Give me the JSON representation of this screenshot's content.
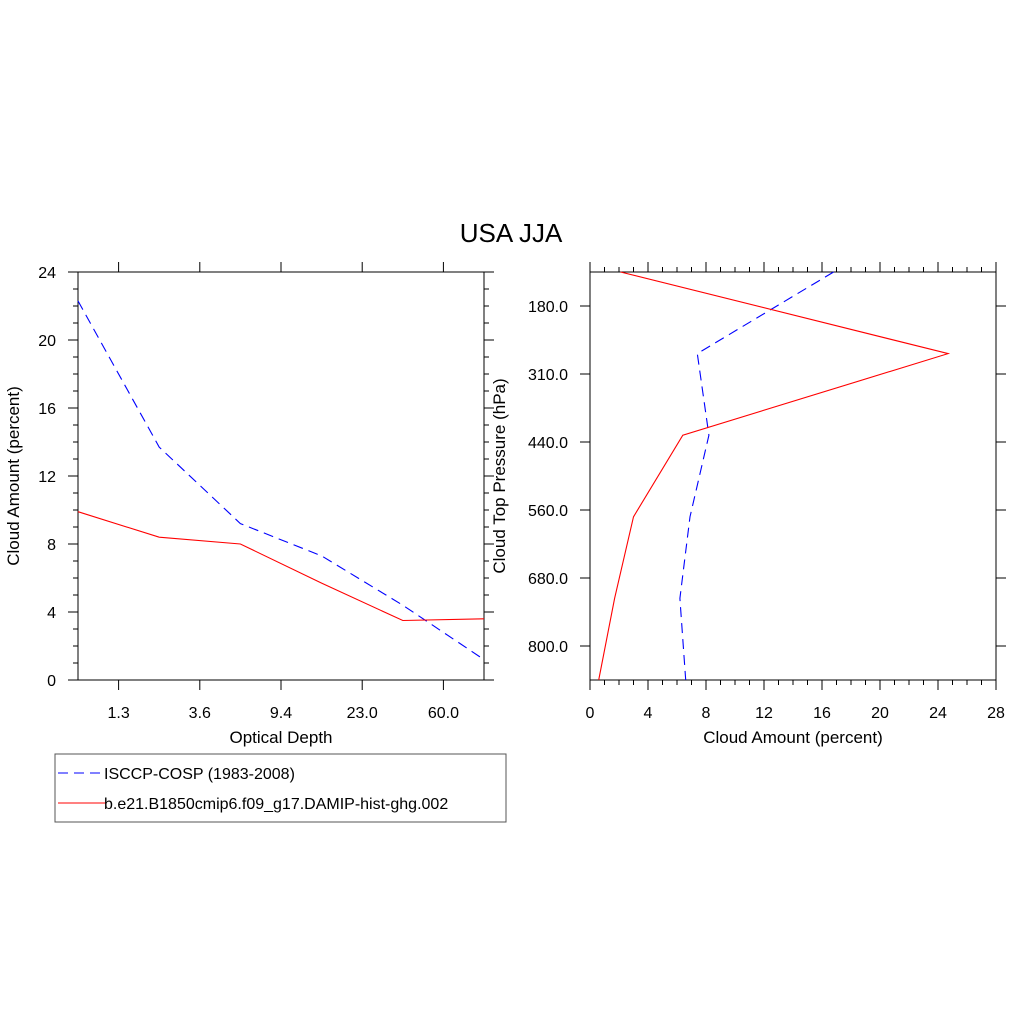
{
  "title": "USA JJA",
  "colors": {
    "obs": "#0000ff",
    "model": "#ff0000",
    "axis": "#000000"
  },
  "legend": {
    "items": [
      {
        "label": "ISCCP-COSP (1983-2008)",
        "style": "dashed",
        "color": "#0000ff"
      },
      {
        "label": "b.e21.B1850cmip6.f09_g17.DAMIP-hist-ghg.002",
        "style": "solid",
        "color": "#ff0000"
      }
    ]
  },
  "chart_data": [
    {
      "type": "line",
      "xlabel": "Optical Depth",
      "ylabel": "Cloud Amount (percent)",
      "x_tick_labels": [
        "1.3",
        "3.6",
        "9.4",
        "23.0",
        "60.0"
      ],
      "y_ticks": [
        0,
        4,
        8,
        12,
        16,
        20,
        24
      ],
      "ylim": [
        0,
        24
      ],
      "grid": false,
      "series": [
        {
          "name": "ISCCP-COSP (1983-2008)",
          "style": "dashed",
          "values": [
            22.3,
            13.7,
            9.2,
            7.3,
            4.4,
            1.2
          ]
        },
        {
          "name": "b.e21.B1850cmip6.f09_g17.DAMIP-hist-ghg.002",
          "style": "solid",
          "values": [
            9.9,
            8.4,
            8.0,
            5.7,
            3.5,
            3.6
          ]
        }
      ]
    },
    {
      "type": "line",
      "xlabel": "Cloud Amount (percent)",
      "ylabel": "Cloud Top Pressure (hPa)",
      "x_ticks": [
        0,
        4,
        8,
        12,
        16,
        20,
        24,
        28
      ],
      "xlim": [
        0,
        28
      ],
      "y_tick_labels": [
        "180.0",
        "310.0",
        "440.0",
        "560.0",
        "680.0",
        "800.0"
      ],
      "y_inverted": true,
      "grid": false,
      "series": [
        {
          "name": "ISCCP-COSP (1983-2008)",
          "style": "dashed",
          "values": [
            16.8,
            7.4,
            8.2,
            6.9,
            6.2,
            6.6
          ]
        },
        {
          "name": "b.e21.B1850cmip6.f09_g17.DAMIP-hist-ghg.002",
          "style": "solid",
          "values": [
            2.1,
            24.7,
            6.4,
            3.0,
            1.7,
            0.6
          ]
        }
      ]
    }
  ]
}
